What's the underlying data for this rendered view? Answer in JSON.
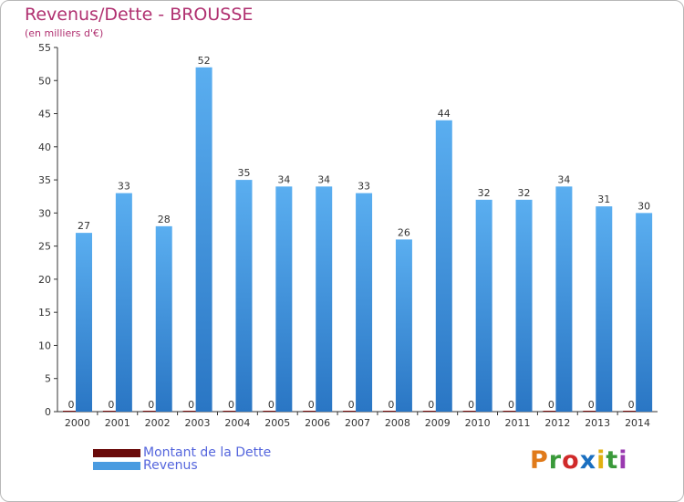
{
  "header": {
    "title": "Revenus/Dette - BROUSSE",
    "subtitle": "(en milliers d'€)"
  },
  "colors": {
    "title": "#b03070",
    "revenus": "#4a9be0",
    "revenus_dark": "#2a6fbf",
    "dette": "#7a1010",
    "legend_text": "#5566dd"
  },
  "chart_data": {
    "type": "bar",
    "categories": [
      "2000",
      "2001",
      "2002",
      "2003",
      "2004",
      "2005",
      "2006",
      "2007",
      "2008",
      "2009",
      "2010",
      "2011",
      "2012",
      "2013",
      "2014"
    ],
    "series": [
      {
        "name": "Montant de la Dette",
        "values": [
          0,
          0,
          0,
          0,
          0,
          0,
          0,
          0,
          0,
          0,
          0,
          0,
          0,
          0,
          0
        ]
      },
      {
        "name": "Revenus",
        "values": [
          27,
          33,
          28,
          52,
          35,
          34,
          34,
          33,
          26,
          44,
          32,
          32,
          34,
          31,
          30
        ]
      }
    ],
    "title": "Revenus/Dette - BROUSSE",
    "subtitle": "(en milliers d'€)",
    "xlabel": "",
    "ylabel": "",
    "ylim": [
      0,
      55
    ],
    "yticks": [
      0,
      5,
      10,
      15,
      20,
      25,
      30,
      35,
      40,
      45,
      50,
      55
    ],
    "grid": false,
    "legend_position": "bottom-left"
  },
  "logo": {
    "letters": [
      "P",
      "r",
      "o",
      "x",
      "i",
      "t",
      "i"
    ],
    "colors": [
      "#e07a1a",
      "#3a9a3a",
      "#d02a2a",
      "#1a6fc0",
      "#e0b010",
      "#3a9a3a",
      "#9a3ab0"
    ]
  }
}
